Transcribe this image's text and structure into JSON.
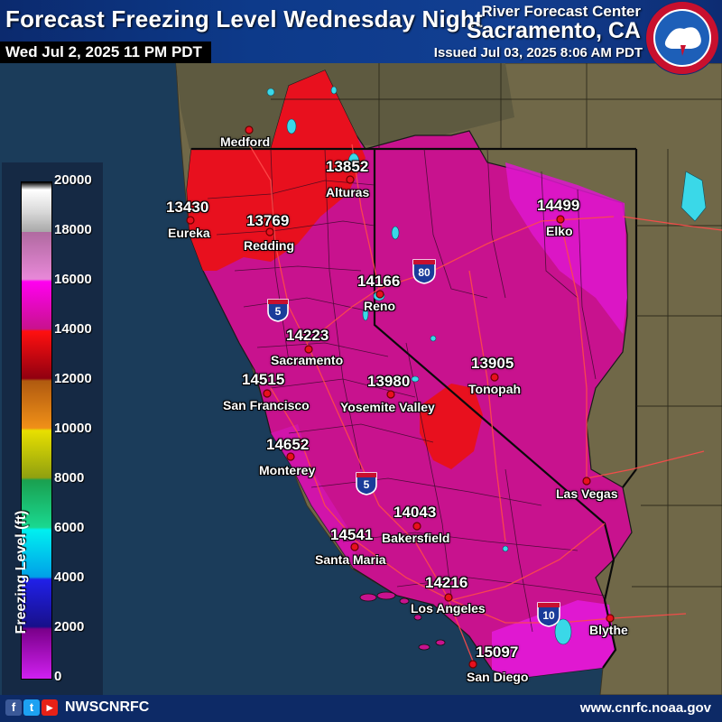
{
  "header": {
    "title": "Forecast Freezing Level Wednesday Night",
    "valid_time": "Wed Jul 2, 2025 11 PM PDT",
    "agency_line1": "River Forecast Center",
    "agency_line2": "Sacramento, CA",
    "issued": "Issued Jul 03, 2025 8:06 AM PDT",
    "logo_text": "NATIONAL WEATHER SERVICE"
  },
  "legend": {
    "title": "Freezing Level (ft)",
    "ticks": [
      "20000",
      "18000",
      "16000",
      "14000",
      "12000",
      "10000",
      "8000",
      "6000",
      "4000",
      "2000",
      "0"
    ]
  },
  "highways": [
    {
      "id": "80",
      "label": "80",
      "color": "#1a3c9a"
    },
    {
      "id": "5a",
      "label": "5",
      "color": "#1a3c9a"
    },
    {
      "id": "5b",
      "label": "5",
      "color": "#1a3c9a"
    },
    {
      "id": "10",
      "label": "10",
      "color": "#1a3c9a"
    }
  ],
  "points": [
    {
      "name": "Medford",
      "value": ""
    },
    {
      "name": "Alturas",
      "value": "13852"
    },
    {
      "name": "Eureka",
      "value": "13430"
    },
    {
      "name": "Redding",
      "value": "13769"
    },
    {
      "name": "Elko",
      "value": "14499"
    },
    {
      "name": "Reno",
      "value": "14166"
    },
    {
      "name": "Sacramento",
      "value": "14223"
    },
    {
      "name": "San Francisco",
      "value": "14515"
    },
    {
      "name": "Tonopah",
      "value": "13905"
    },
    {
      "name": "Yosemite Valley",
      "value": "13980"
    },
    {
      "name": "Monterey",
      "value": "14652"
    },
    {
      "name": "Las Vegas",
      "value": ""
    },
    {
      "name": "Bakersfield",
      "value": "14043"
    },
    {
      "name": "Santa Maria",
      "value": "14541"
    },
    {
      "name": "Los Angeles",
      "value": "14216"
    },
    {
      "name": "Blythe",
      "value": ""
    },
    {
      "name": "San Diego",
      "value": "15097"
    }
  ],
  "footer": {
    "handle": "NWSCNRFC",
    "website": "www.cnrfc.noaa.gov",
    "social_icons": [
      "facebook-icon",
      "twitter-icon",
      "youtube-icon"
    ]
  },
  "colors": {
    "ocean": "#1b3c5a",
    "land_outside": "#6e6648",
    "band_12000_14000": "#e8101e",
    "band_14000_15000": "#c8128e",
    "band_15000_16000": "#e014d6",
    "header_blue": "#0d3a8a",
    "footer_blue": "#0d2a66"
  }
}
